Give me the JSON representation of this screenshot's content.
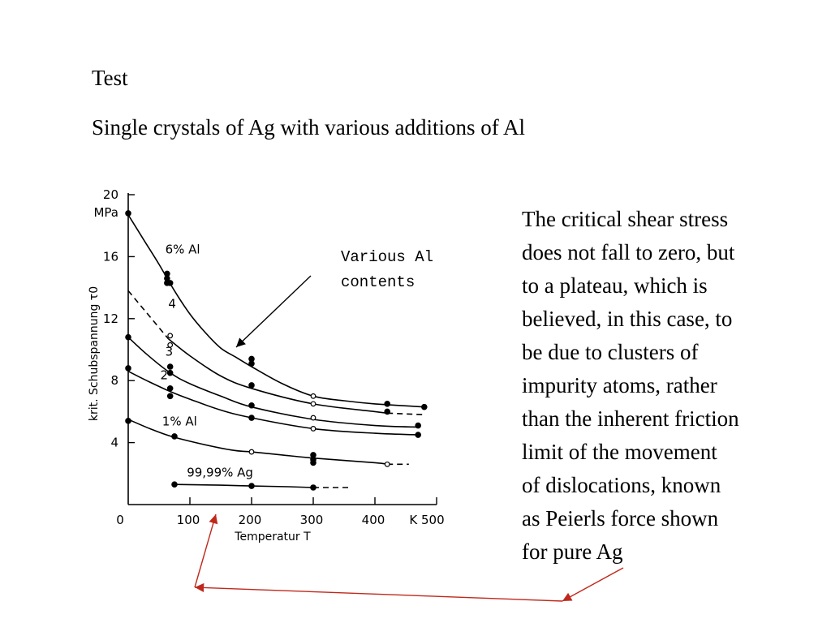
{
  "slide": {
    "title": "Test",
    "subtitle": "Single crystals of Ag with various additions of Al",
    "annotation_lines": [
      "Various Al",
      "contents"
    ],
    "explanation_lines": [
      "The critical shear stress",
      "does not fall to zero, but",
      "to a plateau, which is",
      "believed, in this case, to",
      "be due to clusters of",
      "impurity atoms, rather",
      "than the inherent friction",
      "limit of the movement",
      "of dislocations, known",
      "as Peierls force shown",
      "for pure Ag"
    ],
    "arrow_color": "#c0281c"
  },
  "chart_data": {
    "type": "line",
    "xlabel": "Temperatur T",
    "ylabel": "krit. Schubspannung τ0",
    "y_unit": "MPa",
    "x_unit": "K",
    "xlim": [
      0,
      500
    ],
    "ylim": [
      0,
      20
    ],
    "x_ticks": [
      {
        "value": 0,
        "label": "0"
      },
      {
        "value": 100,
        "label": "100"
      },
      {
        "value": 200,
        "label": "200"
      },
      {
        "value": 300,
        "label": "300"
      },
      {
        "value": 400,
        "label": "400"
      },
      {
        "value": 500,
        "label": "K 500"
      }
    ],
    "y_ticks": [
      {
        "value": 4,
        "label": "4"
      },
      {
        "value": 8,
        "label": "8"
      },
      {
        "value": 12,
        "label": "12"
      },
      {
        "value": 16,
        "label": "16"
      },
      {
        "value": 20,
        "label": "20"
      }
    ],
    "series": [
      {
        "name": "6% Al",
        "label_at": [
          60,
          16.2
        ],
        "line": [
          [
            0,
            18.7
          ],
          [
            25,
            17.1
          ],
          [
            50,
            15.5
          ],
          [
            75,
            13.8
          ],
          [
            100,
            12.3
          ],
          [
            125,
            11.1
          ],
          [
            150,
            10.1
          ],
          [
            175,
            9.5
          ],
          [
            200,
            8.9
          ],
          [
            250,
            7.8
          ],
          [
            300,
            7.0
          ],
          [
            350,
            6.7
          ],
          [
            400,
            6.5
          ],
          [
            480,
            6.3
          ]
        ],
        "dashed_from": null,
        "points": [
          {
            "x": 0,
            "y": 18.8,
            "filled": true
          },
          {
            "x": 63,
            "y": 14.9,
            "filled": true
          },
          {
            "x": 63,
            "y": 14.6,
            "filled": true
          },
          {
            "x": 63,
            "y": 14.3,
            "filled": true
          },
          {
            "x": 68,
            "y": 14.3,
            "filled": true
          },
          {
            "x": 200,
            "y": 9.4,
            "filled": true
          },
          {
            "x": 200,
            "y": 9.1,
            "filled": true
          },
          {
            "x": 300,
            "y": 7.0,
            "filled": false
          },
          {
            "x": 420,
            "y": 6.5,
            "filled": true
          },
          {
            "x": 480,
            "y": 6.3,
            "filled": true
          }
        ]
      },
      {
        "name": "4",
        "label_at": [
          65,
          12.7
        ],
        "line": [
          [
            0,
            13.8
          ],
          [
            30,
            12.3
          ],
          [
            65,
            10.7
          ],
          [
            100,
            9.6
          ],
          [
            150,
            8.3
          ],
          [
            200,
            7.5
          ],
          [
            300,
            6.5
          ],
          [
            400,
            6.0
          ],
          [
            480,
            5.8
          ]
        ],
        "dashed_from": [
          [
            0,
            13.8
          ],
          [
            65,
            10.7
          ]
        ],
        "dashed_tail": [
          [
            420,
            5.9
          ],
          [
            480,
            5.8
          ]
        ],
        "points": [
          {
            "x": 68,
            "y": 10.9,
            "filled": false
          },
          {
            "x": 68,
            "y": 10.3,
            "filled": false
          },
          {
            "x": 200,
            "y": 7.7,
            "filled": true
          },
          {
            "x": 300,
            "y": 6.5,
            "filled": false
          },
          {
            "x": 420,
            "y": 6.0,
            "filled": true
          }
        ]
      },
      {
        "name": "3",
        "label_at": [
          60,
          9.6
        ],
        "line": [
          [
            0,
            10.8
          ],
          [
            30,
            9.7
          ],
          [
            68,
            8.5
          ],
          [
            100,
            7.8
          ],
          [
            150,
            7.0
          ],
          [
            200,
            6.3
          ],
          [
            300,
            5.5
          ],
          [
            400,
            5.1
          ],
          [
            470,
            5.0
          ]
        ],
        "dashed_from": null,
        "points": [
          {
            "x": 0,
            "y": 10.8,
            "filled": true
          },
          {
            "x": 68,
            "y": 8.9,
            "filled": true
          },
          {
            "x": 68,
            "y": 8.5,
            "filled": true
          },
          {
            "x": 200,
            "y": 6.4,
            "filled": true
          },
          {
            "x": 300,
            "y": 5.6,
            "filled": false
          },
          {
            "x": 470,
            "y": 5.1,
            "filled": true
          }
        ]
      },
      {
        "name": "2",
        "label_at": [
          52,
          8.1
        ],
        "line": [
          [
            0,
            8.6
          ],
          [
            30,
            8.0
          ],
          [
            68,
            7.3
          ],
          [
            100,
            6.8
          ],
          [
            150,
            6.1
          ],
          [
            200,
            5.6
          ],
          [
            300,
            4.9
          ],
          [
            400,
            4.6
          ],
          [
            470,
            4.5
          ]
        ],
        "dashed_from": null,
        "points": [
          {
            "x": 0,
            "y": 8.8,
            "filled": true
          },
          {
            "x": 68,
            "y": 7.5,
            "filled": true
          },
          {
            "x": 68,
            "y": 7.0,
            "filled": true
          },
          {
            "x": 200,
            "y": 5.6,
            "filled": true
          },
          {
            "x": 300,
            "y": 4.9,
            "filled": false
          },
          {
            "x": 470,
            "y": 4.5,
            "filled": true
          }
        ]
      },
      {
        "name": "1% Al",
        "label_at": [
          55,
          5.1
        ],
        "line": [
          [
            0,
            5.5
          ],
          [
            35,
            4.9
          ],
          [
            70,
            4.4
          ],
          [
            120,
            3.9
          ],
          [
            170,
            3.5
          ],
          [
            200,
            3.4
          ],
          [
            250,
            3.2
          ],
          [
            300,
            3.0
          ],
          [
            400,
            2.7
          ],
          [
            440,
            2.6
          ]
        ],
        "dashed_from": null,
        "dashed_tail": [
          [
            420,
            2.6
          ],
          [
            455,
            2.6
          ]
        ],
        "points": [
          {
            "x": 0,
            "y": 5.4,
            "filled": true
          },
          {
            "x": 75,
            "y": 4.4,
            "filled": true
          },
          {
            "x": 200,
            "y": 3.4,
            "filled": false
          },
          {
            "x": 300,
            "y": 3.2,
            "filled": true
          },
          {
            "x": 300,
            "y": 2.9,
            "filled": true
          },
          {
            "x": 300,
            "y": 2.7,
            "filled": true
          },
          {
            "x": 420,
            "y": 2.6,
            "filled": false
          }
        ]
      },
      {
        "name": "99,99% Ag",
        "label_at": [
          95,
          1.8
        ],
        "line": [
          [
            75,
            1.3
          ],
          [
            150,
            1.25
          ],
          [
            200,
            1.2
          ],
          [
            260,
            1.15
          ],
          [
            300,
            1.1
          ]
        ],
        "dashed_from": null,
        "dashed_tail": [
          [
            300,
            1.1
          ],
          [
            360,
            1.1
          ]
        ],
        "points": [
          {
            "x": 75,
            "y": 1.3,
            "filled": true
          },
          {
            "x": 200,
            "y": 1.2,
            "filled": true
          },
          {
            "x": 300,
            "y": 1.1,
            "filled": true
          }
        ]
      }
    ]
  }
}
